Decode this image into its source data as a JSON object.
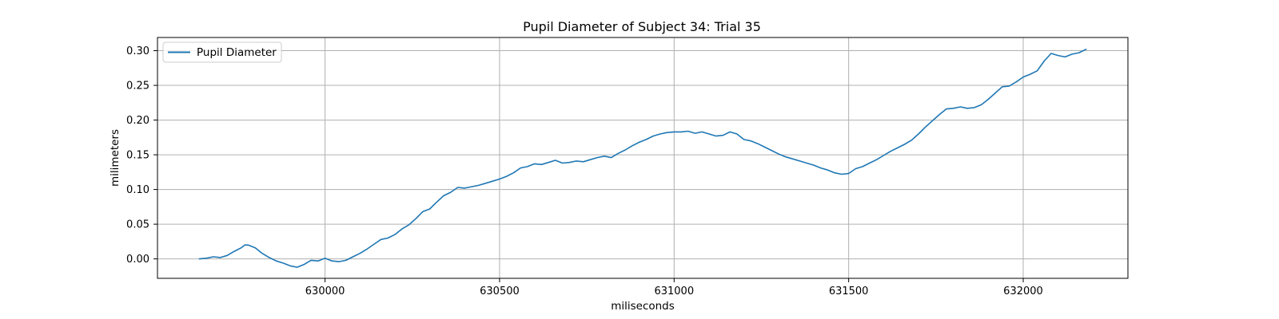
{
  "chart_data": {
    "type": "line",
    "title": "Pupil Diameter of Subject 34: Trial 35",
    "xlabel": "miliseconds",
    "ylabel": "milimeters",
    "xlim": [
      629520,
      632300
    ],
    "ylim": [
      -0.028,
      0.319
    ],
    "x_ticks": [
      630000,
      630500,
      631000,
      631500,
      632000
    ],
    "y_ticks": [
      0.0,
      0.05,
      0.1,
      0.15,
      0.2,
      0.25,
      0.3
    ],
    "y_tick_labels": [
      "0.00",
      "0.05",
      "0.10",
      "0.15",
      "0.20",
      "0.25",
      "0.30"
    ],
    "grid": true,
    "legend": {
      "position": "top-left",
      "entries": [
        "Pupil Diameter"
      ]
    },
    "series": [
      {
        "name": "Pupil Diameter",
        "color": "#1f77b4",
        "points": [
          [
            629640,
            0.0
          ],
          [
            629660,
            0.001
          ],
          [
            629680,
            0.003
          ],
          [
            629700,
            0.002
          ],
          [
            629720,
            0.005
          ],
          [
            629740,
            0.011
          ],
          [
            629760,
            0.016
          ],
          [
            629770,
            0.02
          ],
          [
            629780,
            0.02
          ],
          [
            629800,
            0.016
          ],
          [
            629820,
            0.008
          ],
          [
            629840,
            0.002
          ],
          [
            629860,
            -0.003
          ],
          [
            629880,
            -0.006
          ],
          [
            629900,
            -0.01
          ],
          [
            629920,
            -0.012
          ],
          [
            629940,
            -0.008
          ],
          [
            629960,
            -0.002
          ],
          [
            629980,
            -0.003
          ],
          [
            630000,
            0.001
          ],
          [
            630020,
            -0.003
          ],
          [
            630040,
            -0.004
          ],
          [
            630060,
            -0.002
          ],
          [
            630080,
            0.003
          ],
          [
            630100,
            0.008
          ],
          [
            630120,
            0.014
          ],
          [
            630140,
            0.021
          ],
          [
            630160,
            0.028
          ],
          [
            630180,
            0.03
          ],
          [
            630200,
            0.035
          ],
          [
            630220,
            0.043
          ],
          [
            630240,
            0.049
          ],
          [
            630260,
            0.058
          ],
          [
            630280,
            0.068
          ],
          [
            630300,
            0.072
          ],
          [
            630320,
            0.082
          ],
          [
            630340,
            0.091
          ],
          [
            630360,
            0.096
          ],
          [
            630380,
            0.103
          ],
          [
            630400,
            0.102
          ],
          [
            630420,
            0.104
          ],
          [
            630440,
            0.106
          ],
          [
            630460,
            0.109
          ],
          [
            630480,
            0.112
          ],
          [
            630500,
            0.115
          ],
          [
            630520,
            0.119
          ],
          [
            630540,
            0.124
          ],
          [
            630560,
            0.131
          ],
          [
            630580,
            0.133
          ],
          [
            630600,
            0.137
          ],
          [
            630620,
            0.136
          ],
          [
            630640,
            0.139
          ],
          [
            630660,
            0.142
          ],
          [
            630680,
            0.138
          ],
          [
            630700,
            0.139
          ],
          [
            630720,
            0.141
          ],
          [
            630740,
            0.14
          ],
          [
            630760,
            0.143
          ],
          [
            630780,
            0.146
          ],
          [
            630800,
            0.148
          ],
          [
            630820,
            0.146
          ],
          [
            630840,
            0.152
          ],
          [
            630860,
            0.157
          ],
          [
            630880,
            0.163
          ],
          [
            630900,
            0.168
          ],
          [
            630920,
            0.172
          ],
          [
            630940,
            0.177
          ],
          [
            630960,
            0.18
          ],
          [
            630980,
            0.182
          ],
          [
            631000,
            0.183
          ],
          [
            631020,
            0.183
          ],
          [
            631040,
            0.184
          ],
          [
            631060,
            0.181
          ],
          [
            631080,
            0.183
          ],
          [
            631100,
            0.18
          ],
          [
            631120,
            0.177
          ],
          [
            631140,
            0.178
          ],
          [
            631160,
            0.183
          ],
          [
            631180,
            0.18
          ],
          [
            631200,
            0.172
          ],
          [
            631220,
            0.17
          ],
          [
            631240,
            0.166
          ],
          [
            631260,
            0.161
          ],
          [
            631280,
            0.156
          ],
          [
            631300,
            0.151
          ],
          [
            631320,
            0.147
          ],
          [
            631340,
            0.144
          ],
          [
            631360,
            0.141
          ],
          [
            631380,
            0.138
          ],
          [
            631400,
            0.135
          ],
          [
            631420,
            0.131
          ],
          [
            631440,
            0.128
          ],
          [
            631460,
            0.124
          ],
          [
            631480,
            0.122
          ],
          [
            631500,
            0.123
          ],
          [
            631520,
            0.13
          ],
          [
            631540,
            0.133
          ],
          [
            631560,
            0.138
          ],
          [
            631580,
            0.143
          ],
          [
            631600,
            0.149
          ],
          [
            631620,
            0.155
          ],
          [
            631640,
            0.16
          ],
          [
            631660,
            0.165
          ],
          [
            631680,
            0.171
          ],
          [
            631700,
            0.18
          ],
          [
            631720,
            0.19
          ],
          [
            631740,
            0.199
          ],
          [
            631760,
            0.208
          ],
          [
            631780,
            0.216
          ],
          [
            631800,
            0.217
          ],
          [
            631820,
            0.219
          ],
          [
            631840,
            0.217
          ],
          [
            631860,
            0.218
          ],
          [
            631880,
            0.222
          ],
          [
            631900,
            0.23
          ],
          [
            631920,
            0.239
          ],
          [
            631940,
            0.248
          ],
          [
            631960,
            0.249
          ],
          [
            631980,
            0.255
          ],
          [
            632000,
            0.262
          ],
          [
            632020,
            0.266
          ],
          [
            632040,
            0.271
          ],
          [
            632060,
            0.285
          ],
          [
            632080,
            0.296
          ],
          [
            632100,
            0.293
          ],
          [
            632120,
            0.291
          ],
          [
            632140,
            0.295
          ],
          [
            632160,
            0.297
          ],
          [
            632180,
            0.302
          ]
        ]
      }
    ]
  }
}
